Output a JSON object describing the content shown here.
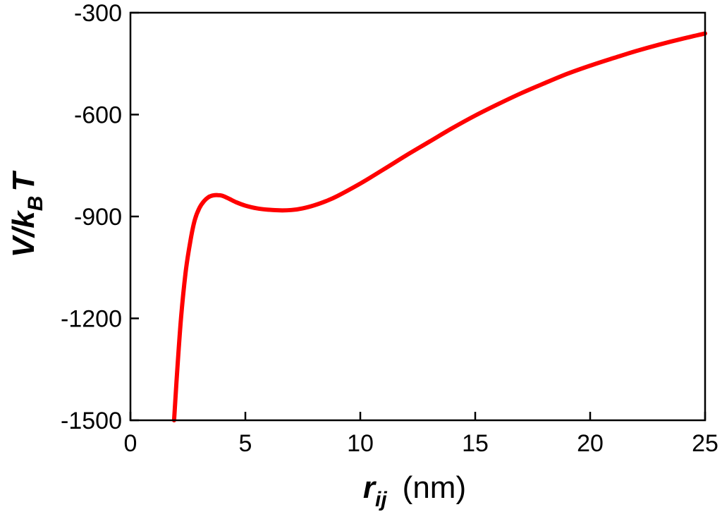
{
  "chart_data": {
    "type": "line",
    "title": "",
    "xlabel": {
      "var": "r",
      "sub": "ij",
      "unit": "(nm)"
    },
    "ylabel": {
      "V": "V/k",
      "sub": "B",
      "T": "T"
    },
    "xlim": [
      0,
      25
    ],
    "ylim": [
      -1500,
      -300
    ],
    "xticks": [
      0,
      5,
      10,
      15,
      20,
      25
    ],
    "yticks": [
      -300,
      -600,
      -900,
      -1200,
      -1500
    ],
    "grid": false,
    "legend": "none",
    "series": [
      {
        "color": "#ff0000",
        "x": [
          1.9,
          2.0,
          2.2,
          2.4,
          2.6,
          2.8,
          3.0,
          3.2,
          3.4,
          3.6,
          3.8,
          4.0,
          4.3,
          4.6,
          5.0,
          5.5,
          6.0,
          6.5,
          7.0,
          7.5,
          8.0,
          8.5,
          9.0,
          10.0,
          11.0,
          12.0,
          13.0,
          14.0,
          15.0,
          16.0,
          17.0,
          18.0,
          19.0,
          20.0,
          21.0,
          22.0,
          23.0,
          24.0,
          25.0
        ],
        "y": [
          -1500,
          -1390,
          -1200,
          -1065,
          -975,
          -910,
          -875,
          -855,
          -843,
          -838,
          -837,
          -839,
          -848,
          -858,
          -868,
          -876,
          -880,
          -882,
          -881,
          -876,
          -867,
          -855,
          -840,
          -803,
          -762,
          -720,
          -680,
          -640,
          -603,
          -569,
          -537,
          -508,
          -480,
          -456,
          -434,
          -413,
          -394,
          -377,
          -361
        ]
      }
    ]
  }
}
